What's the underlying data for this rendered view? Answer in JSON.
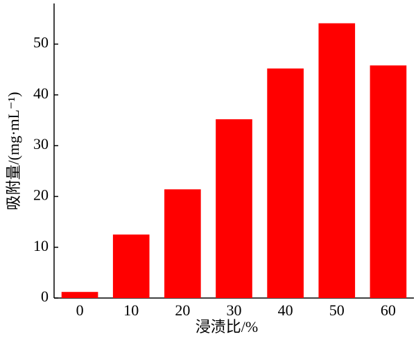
{
  "chart_data": {
    "type": "bar",
    "x_label": "浸渍比/%",
    "y_label": "吸附量/(mg·mL⁻¹)",
    "categories": [
      "0",
      "10",
      "20",
      "30",
      "40",
      "50",
      "60"
    ],
    "values": [
      1.2,
      12.5,
      21.4,
      35.2,
      45.2,
      54.1,
      45.8
    ],
    "color": "#ff0000",
    "ylim": [
      0,
      58
    ],
    "yticks": [
      0,
      10,
      20,
      30,
      40,
      50
    ],
    "grid": false
  }
}
